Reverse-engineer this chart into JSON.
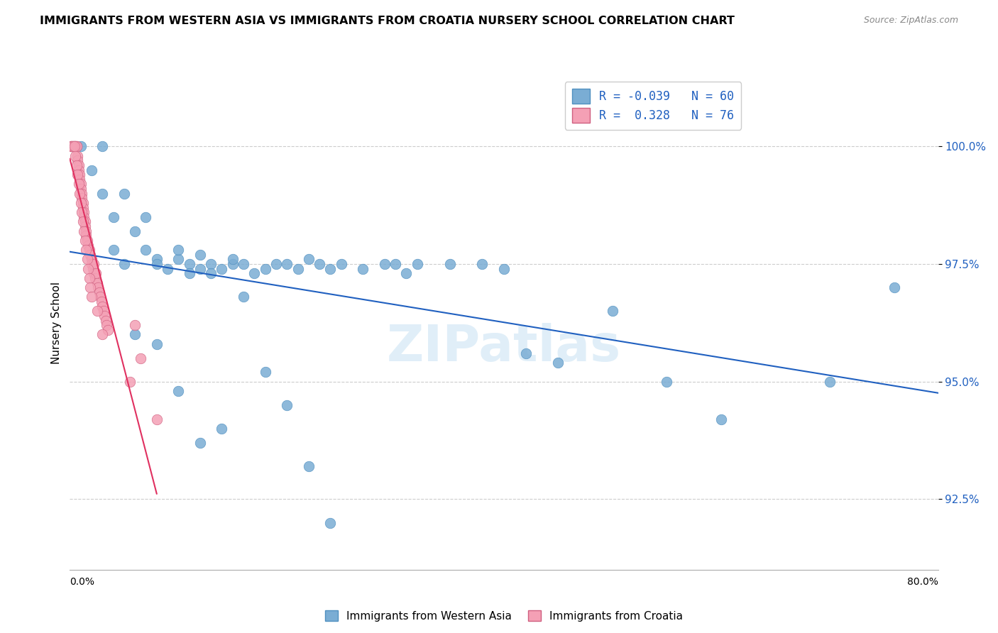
{
  "title": "IMMIGRANTS FROM WESTERN ASIA VS IMMIGRANTS FROM CROATIA NURSERY SCHOOL CORRELATION CHART",
  "source": "Source: ZipAtlas.com",
  "ylabel": "Nursery School",
  "legend_blue_R": "-0.039",
  "legend_blue_N": "60",
  "legend_pink_R": "0.328",
  "legend_pink_N": "76",
  "legend_blue_label": "Immigrants from Western Asia",
  "legend_pink_label": "Immigrants from Croatia",
  "xmin": 0.0,
  "xmax": 0.8,
  "ymin": 91.0,
  "ymax": 101.5,
  "yticks": [
    92.5,
    95.0,
    97.5,
    100.0
  ],
  "ytick_labels": [
    "92.5%",
    "95.0%",
    "97.5%",
    "100.0%"
  ],
  "blue_color": "#7aadd4",
  "pink_color": "#f4a0b5",
  "blue_line_color": "#2060c0",
  "pink_line_color": "#e03060",
  "blue_x": [
    0.01,
    0.02,
    0.03,
    0.03,
    0.04,
    0.04,
    0.05,
    0.05,
    0.06,
    0.07,
    0.07,
    0.08,
    0.08,
    0.09,
    0.1,
    0.1,
    0.11,
    0.11,
    0.12,
    0.12,
    0.13,
    0.13,
    0.14,
    0.15,
    0.15,
    0.16,
    0.17,
    0.18,
    0.19,
    0.2,
    0.21,
    0.22,
    0.23,
    0.24,
    0.25,
    0.27,
    0.29,
    0.3,
    0.31,
    0.32,
    0.35,
    0.38,
    0.4,
    0.42,
    0.45,
    0.5,
    0.55,
    0.6,
    0.7,
    0.76,
    0.06,
    0.08,
    0.1,
    0.12,
    0.14,
    0.16,
    0.18,
    0.2,
    0.22,
    0.24
  ],
  "blue_y": [
    100.0,
    99.5,
    99.0,
    100.0,
    98.5,
    97.8,
    99.0,
    97.5,
    98.2,
    97.8,
    98.5,
    97.6,
    97.5,
    97.4,
    97.6,
    97.8,
    97.5,
    97.3,
    97.7,
    97.4,
    97.5,
    97.3,
    97.4,
    97.5,
    97.6,
    97.5,
    97.3,
    97.4,
    97.5,
    97.5,
    97.4,
    97.6,
    97.5,
    97.4,
    97.5,
    97.4,
    97.5,
    97.5,
    97.3,
    97.5,
    97.5,
    97.5,
    97.4,
    95.6,
    95.4,
    96.5,
    95.0,
    94.2,
    95.0,
    97.0,
    96.0,
    95.8,
    94.8,
    93.7,
    94.0,
    96.8,
    95.2,
    94.5,
    93.2,
    92.0
  ],
  "pink_x": [
    0.001,
    0.002,
    0.003,
    0.003,
    0.004,
    0.004,
    0.005,
    0.005,
    0.006,
    0.006,
    0.007,
    0.007,
    0.008,
    0.008,
    0.009,
    0.009,
    0.01,
    0.01,
    0.011,
    0.011,
    0.012,
    0.012,
    0.013,
    0.013,
    0.014,
    0.014,
    0.015,
    0.015,
    0.016,
    0.017,
    0.018,
    0.019,
    0.02,
    0.02,
    0.021,
    0.022,
    0.022,
    0.023,
    0.024,
    0.025,
    0.026,
    0.027,
    0.028,
    0.029,
    0.03,
    0.031,
    0.032,
    0.033,
    0.034,
    0.035,
    0.001,
    0.002,
    0.003,
    0.004,
    0.005,
    0.006,
    0.007,
    0.008,
    0.009,
    0.01,
    0.011,
    0.012,
    0.013,
    0.014,
    0.015,
    0.016,
    0.017,
    0.018,
    0.019,
    0.02,
    0.025,
    0.03,
    0.055,
    0.06,
    0.065,
    0.08
  ],
  "pink_y": [
    100.0,
    100.0,
    100.0,
    100.0,
    100.0,
    100.0,
    100.0,
    100.0,
    100.0,
    100.0,
    99.8,
    99.7,
    99.6,
    99.5,
    99.4,
    99.3,
    99.2,
    99.1,
    99.0,
    98.9,
    98.8,
    98.7,
    98.6,
    98.5,
    98.4,
    98.3,
    98.2,
    98.1,
    98.0,
    97.9,
    97.8,
    97.7,
    97.6,
    97.5,
    97.4,
    97.3,
    97.5,
    97.2,
    97.3,
    97.1,
    97.0,
    96.9,
    96.8,
    96.7,
    96.6,
    96.5,
    96.4,
    96.3,
    96.2,
    96.1,
    100.0,
    100.0,
    100.0,
    100.0,
    99.8,
    99.6,
    99.4,
    99.2,
    99.0,
    98.8,
    98.6,
    98.4,
    98.2,
    98.0,
    97.8,
    97.6,
    97.4,
    97.2,
    97.0,
    96.8,
    96.5,
    96.0,
    95.0,
    96.2,
    95.5,
    94.2
  ]
}
